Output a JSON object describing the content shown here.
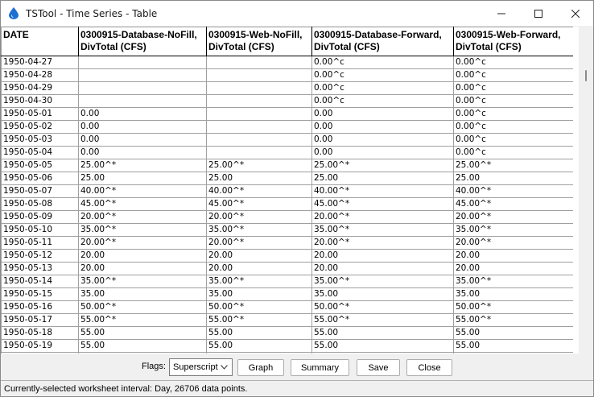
{
  "window": {
    "title": "TSTool - Time Series - Table"
  },
  "table": {
    "columns": [
      {
        "line1": "DATE",
        "line2": ""
      },
      {
        "line1": "0300915-Database-NoFill,",
        "line2": "DivTotal (CFS)"
      },
      {
        "line1": "0300915-Web-NoFill,",
        "line2": "DivTotal (CFS)"
      },
      {
        "line1": "0300915-Database-Forward,",
        "line2": "DivTotal (CFS)"
      },
      {
        "line1": "0300915-Web-Forward,",
        "line2": "DivTotal (CFS)"
      }
    ],
    "rows": [
      [
        "1950-04-27",
        "",
        "",
        "0.00^c",
        "0.00^c"
      ],
      [
        "1950-04-28",
        "",
        "",
        "0.00^c",
        "0.00^c"
      ],
      [
        "1950-04-29",
        "",
        "",
        "0.00^c",
        "0.00^c"
      ],
      [
        "1950-04-30",
        "",
        "",
        "0.00^c",
        "0.00^c"
      ],
      [
        "1950-05-01",
        "0.00",
        "",
        "0.00",
        "0.00^c"
      ],
      [
        "1950-05-02",
        "0.00",
        "",
        "0.00",
        "0.00^c"
      ],
      [
        "1950-05-03",
        "0.00",
        "",
        "0.00",
        "0.00^c"
      ],
      [
        "1950-05-04",
        "0.00",
        "",
        "0.00",
        "0.00^c"
      ],
      [
        "1950-05-05",
        "25.00^*",
        "25.00^*",
        "25.00^*",
        "25.00^*"
      ],
      [
        "1950-05-06",
        "25.00",
        "25.00",
        "25.00",
        "25.00"
      ],
      [
        "1950-05-07",
        "40.00^*",
        "40.00^*",
        "40.00^*",
        "40.00^*"
      ],
      [
        "1950-05-08",
        "45.00^*",
        "45.00^*",
        "45.00^*",
        "45.00^*"
      ],
      [
        "1950-05-09",
        "20.00^*",
        "20.00^*",
        "20.00^*",
        "20.00^*"
      ],
      [
        "1950-05-10",
        "35.00^*",
        "35.00^*",
        "35.00^*",
        "35.00^*"
      ],
      [
        "1950-05-11",
        "20.00^*",
        "20.00^*",
        "20.00^*",
        "20.00^*"
      ],
      [
        "1950-05-12",
        "20.00",
        "20.00",
        "20.00",
        "20.00"
      ],
      [
        "1950-05-13",
        "20.00",
        "20.00",
        "20.00",
        "20.00"
      ],
      [
        "1950-05-14",
        "35.00^*",
        "35.00^*",
        "35.00^*",
        "35.00^*"
      ],
      [
        "1950-05-15",
        "35.00",
        "35.00",
        "35.00",
        "35.00"
      ],
      [
        "1950-05-16",
        "50.00^*",
        "50.00^*",
        "50.00^*",
        "50.00^*"
      ],
      [
        "1950-05-17",
        "55.00^*",
        "55.00^*",
        "55.00^*",
        "55.00^*"
      ],
      [
        "1950-05-18",
        "55.00",
        "55.00",
        "55.00",
        "55.00"
      ],
      [
        "1950-05-19",
        "55.00",
        "55.00",
        "55.00",
        "55.00"
      ],
      [
        "",
        "",
        "",
        "",
        ""
      ]
    ]
  },
  "controls": {
    "flags_label": "Flags:",
    "flags_value": "Superscript",
    "graph_label": "Graph",
    "summary_label": "Summary",
    "save_label": "Save",
    "close_label": "Close"
  },
  "status": {
    "text": "Currently-selected worksheet interval: Day, 26706 data points."
  },
  "icons": {
    "app": "water-drop-icon",
    "minimize": "minimize-icon",
    "maximize": "maximize-icon",
    "close": "close-icon",
    "dropdown": "chevron-down-icon"
  },
  "colors": {
    "app_icon": "#1f6fd1",
    "grid_line": "#a0a0a0"
  }
}
